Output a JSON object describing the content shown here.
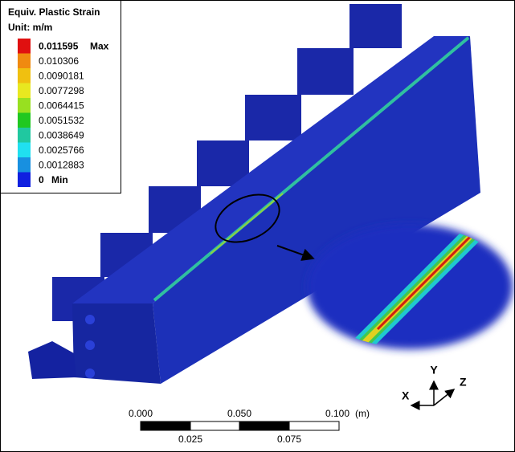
{
  "legend": {
    "title": "Equiv. Plastic Strain",
    "unit": "Unit: m/m",
    "entries": [
      {
        "value": "0.011595",
        "color": "#e01010"
      },
      {
        "value": "0.010306",
        "color": "#f08a10"
      },
      {
        "value": "0.0090181",
        "color": "#f0c010"
      },
      {
        "value": "0.0077298",
        "color": "#e8e820"
      },
      {
        "value": "0.0064415",
        "color": "#98e020"
      },
      {
        "value": "0.0051532",
        "color": "#20c820"
      },
      {
        "value": "0.0038649",
        "color": "#20c8a0"
      },
      {
        "value": "0.0025766",
        "color": "#20e0f0"
      },
      {
        "value": "0.0012883",
        "color": "#1890e0"
      },
      {
        "value": "0",
        "color": "#1020e0"
      }
    ],
    "max_label": "Max",
    "min_label": "Min"
  },
  "scale_bar": {
    "top_labels": [
      "0.000",
      "0.050",
      "0.100"
    ],
    "unit": "(m)",
    "bottom_labels": [
      "0.025",
      "0.075"
    ]
  },
  "triad": {
    "x": "X",
    "y": "Y",
    "z": "Z"
  }
}
